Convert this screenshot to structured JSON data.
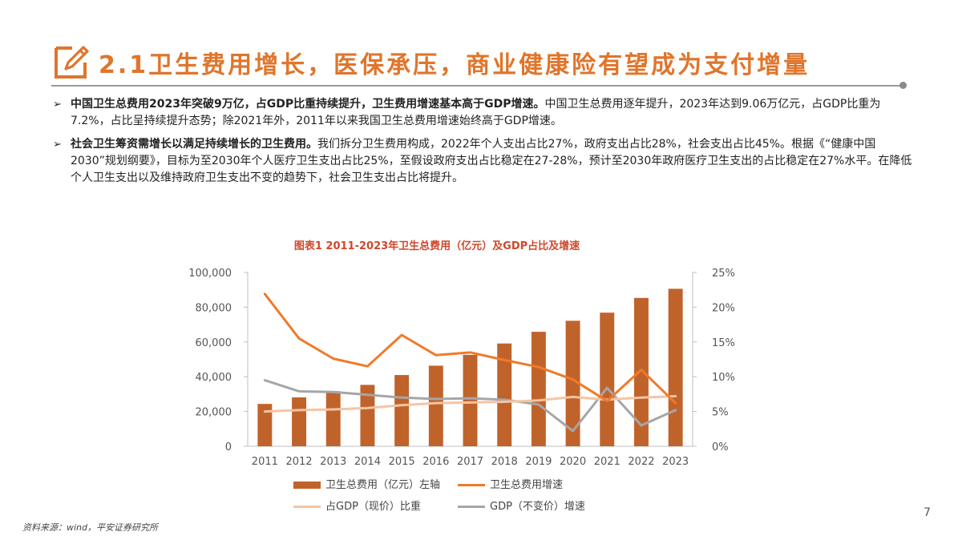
{
  "header": {
    "title": "2.1卫生费用增长，医保承压，商业健康险有望成为支付增量",
    "icon": "pencil-icon",
    "accent_color": "#e0752b"
  },
  "bullets": [
    {
      "bold": "中国卫生总费用2023年突破9万亿，占GDP比重持续提升，卫生费用增速基本高于GDP增速。",
      "text": "中国卫生总费用逐年提升，2023年达到9.06万亿元，占GDP比重为7.2%，占比呈持续提升态势；除2021年外，2011年以来我国卫生总费用增速始终高于GDP增速。"
    },
    {
      "bold": "社会卫生筹资需增长以满足持续增长的卫生费用。",
      "text": "我们拆分卫生费用构成，2022年个人支出占比27%，政府支出占比28%，社会支出占比45%。根据《“健康中国2030”规划纲要》，目标为至2030年个人医疗卫生支出占比25%，至假设政府支出占比稳定在27-28%，预计至2030年政府医疗卫生支出的占比稳定在27%水平。在降低个人卫生支出以及维持政府卫生支出不变的趋势下，社会卫生支出占比将提升。"
    }
  ],
  "chart_data": {
    "type": "bar",
    "title": "图表1 2011-2023年卫生总费用（亿元）及GDP占比及增速",
    "categories": [
      "2011",
      "2012",
      "2013",
      "2014",
      "2015",
      "2016",
      "2017",
      "2018",
      "2019",
      "2020",
      "2021",
      "2022",
      "2023"
    ],
    "left_ticks": [
      "0",
      "20,000",
      "40,000",
      "60,000",
      "80,000",
      "100,000"
    ],
    "right_ticks": [
      "0%",
      "5%",
      "10%",
      "15%",
      "20%",
      "25%"
    ],
    "ylim_left": [
      0,
      100000
    ],
    "ylim_right": [
      0,
      25
    ],
    "series": [
      {
        "name": "卫生总费用（亿元）左轴",
        "type": "bar",
        "axis": "left",
        "color": "#c0632b",
        "values": [
          24346,
          28119,
          31669,
          35312,
          40975,
          46345,
          52598,
          59122,
          65841,
          72175,
          76845,
          85327,
          90576
        ]
      },
      {
        "name": "卫生总费用增速",
        "type": "line",
        "axis": "right",
        "color": "#f07a2a",
        "values": [
          21.9,
          15.5,
          12.6,
          11.5,
          16.0,
          13.1,
          13.5,
          12.4,
          11.4,
          9.6,
          6.5,
          11.0,
          6.2
        ]
      },
      {
        "name": "占GDP（现价）比重",
        "type": "line",
        "axis": "right",
        "color": "#f6c4a2",
        "values": [
          5.0,
          5.2,
          5.3,
          5.5,
          5.9,
          6.2,
          6.3,
          6.4,
          6.6,
          7.1,
          6.7,
          7.0,
          7.2
        ]
      },
      {
        "name": "GDP（不变价）增速",
        "type": "line",
        "axis": "right",
        "color": "#a6a6a6",
        "values": [
          9.5,
          7.9,
          7.8,
          7.4,
          7.0,
          6.8,
          6.9,
          6.7,
          6.0,
          2.2,
          8.4,
          3.0,
          5.2
        ]
      }
    ]
  },
  "footer": {
    "source": "资料来源：wind，平安证券研究所",
    "page_number": "7"
  }
}
